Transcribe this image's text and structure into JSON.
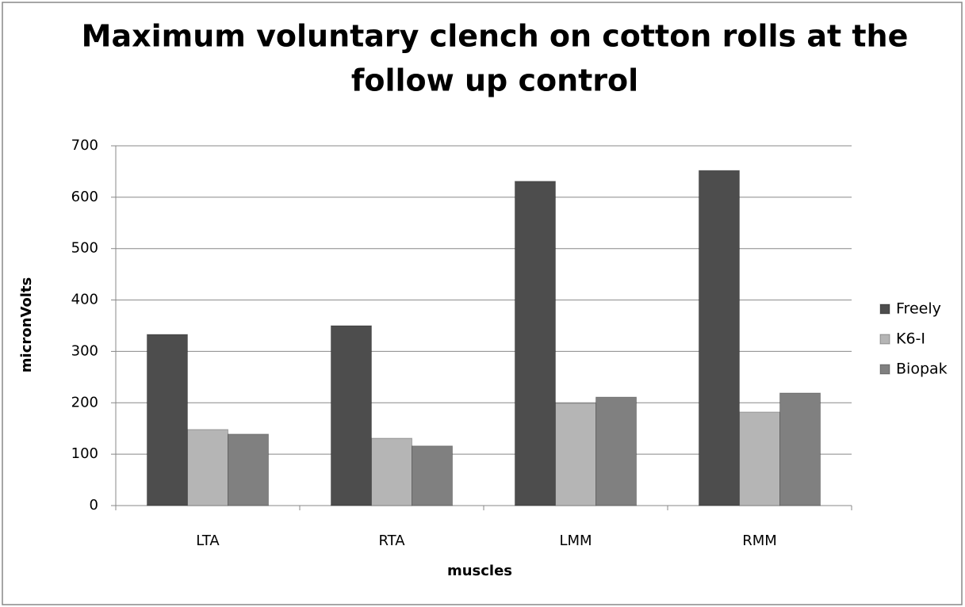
{
  "chart_data": {
    "type": "bar",
    "title": [
      "Maximum voluntary clench on cotton rolls at the",
      "follow up control"
    ],
    "xlabel": "muscles",
    "ylabel": "micronVolts",
    "categories": [
      "LTA",
      "RTA",
      "LMM",
      "RMM"
    ],
    "series": [
      {
        "name": "Freely",
        "color": "#4d4d4d",
        "values": [
          333,
          350,
          631,
          652
        ]
      },
      {
        "name": "K6-I",
        "color": "#b5b5b5",
        "values": [
          148,
          131,
          199,
          182
        ]
      },
      {
        "name": "Biopak",
        "color": "#808080",
        "values": [
          139,
          116,
          211,
          219
        ]
      }
    ],
    "ylim": [
      0,
      700
    ],
    "yticks": [
      0,
      100,
      200,
      300,
      400,
      500,
      600,
      700
    ],
    "grid": true,
    "legend": "right"
  }
}
